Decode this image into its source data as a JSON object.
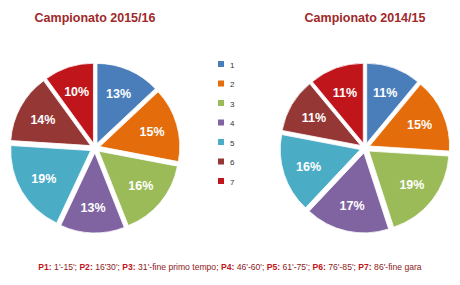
{
  "chart_data": [
    {
      "type": "pie",
      "title": "Campionato 2015/16",
      "categories": [
        "1",
        "2",
        "3",
        "4",
        "5",
        "6",
        "7"
      ],
      "values": [
        13,
        15,
        16,
        13,
        19,
        14,
        10
      ],
      "value_labels": [
        "13%",
        "15%",
        "16%",
        "13%",
        "19%",
        "14%",
        "10%"
      ],
      "colors": [
        "#4a7ebb",
        "#e46c0a",
        "#9bbb59",
        "#8064a2",
        "#4bacc6",
        "#953735",
        "#c0161b"
      ],
      "data_labels": true,
      "legend": "right",
      "annotation": "P1: 1'-15'; P2: 16'30'; P3: 31'-fine primo tempo; P4: 46'-60'; P5: 61'-75'; P6: 76'-85'; P7: 86'-fine gara"
    },
    {
      "type": "pie",
      "title": "Campionato 2014/15",
      "categories": [
        "1",
        "2",
        "3",
        "4",
        "5",
        "6",
        "7"
      ],
      "values": [
        11,
        15,
        19,
        17,
        16,
        11,
        11
      ],
      "value_labels": [
        "11%",
        "15%",
        "19%",
        "17%",
        "16%",
        "11%",
        "11%"
      ],
      "colors": [
        "#4a7ebb",
        "#e46c0a",
        "#9bbb59",
        "#8064a2",
        "#4bacc6",
        "#953735",
        "#c0161b"
      ],
      "data_labels": true
    }
  ]
}
